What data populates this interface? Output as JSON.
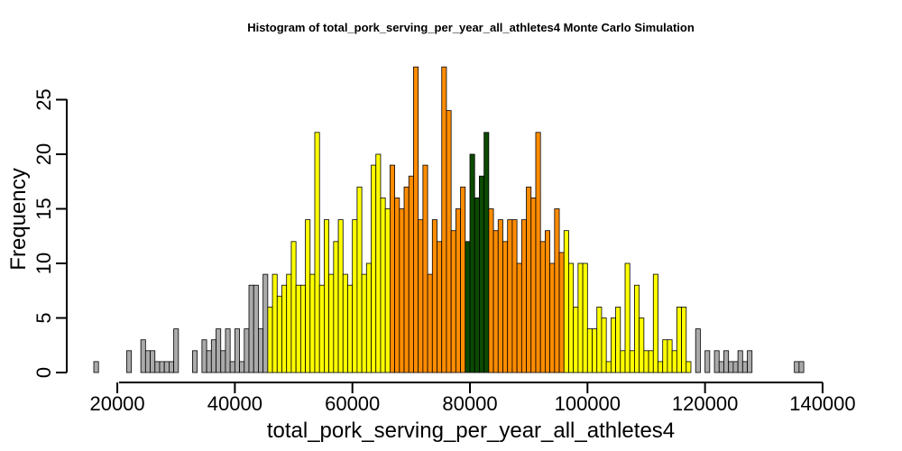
{
  "chart_data": {
    "type": "bar",
    "title": "Histogram of  total_pork_serving_per_year_all_athletes4  Monte Carlo Simulation",
    "xlabel": "total_pork_serving_per_year_all_athletes4",
    "ylabel": "Frequency",
    "xlim": [
      16000,
      144000
    ],
    "ylim": [
      0,
      28
    ],
    "x_ticks": [
      "20000",
      "40000",
      "60000",
      "80000",
      "100000",
      "120000",
      "140000"
    ],
    "y_ticks": [
      "0",
      "5",
      "10",
      "15",
      "20",
      "25"
    ],
    "bin_start": 16000,
    "bin_width": 800,
    "values": [
      1,
      0,
      0,
      0,
      0,
      0,
      0,
      2,
      0,
      0,
      3,
      2,
      2,
      1,
      1,
      1,
      1,
      4,
      0,
      0,
      0,
      2,
      0,
      3,
      2,
      3,
      4,
      2,
      4,
      1,
      4,
      1,
      4,
      8,
      8,
      4,
      9,
      6,
      9,
      7,
      8,
      9,
      12,
      8,
      8,
      14,
      9,
      22,
      8,
      14,
      9,
      12,
      14,
      9,
      8,
      14,
      17,
      9,
      10,
      19,
      20,
      16,
      15,
      19,
      16,
      15,
      17,
      18,
      28,
      14,
      19,
      9,
      14,
      12,
      28,
      24,
      13,
      15,
      17,
      12,
      20,
      16,
      18,
      22,
      15,
      13,
      14,
      12,
      14,
      14,
      10,
      14,
      17,
      16,
      22,
      12,
      13,
      10,
      15,
      11,
      13,
      10,
      6,
      10,
      10,
      4,
      4,
      6,
      5,
      1,
      5,
      6,
      2,
      10,
      2,
      8,
      5,
      2,
      2,
      9,
      1,
      3,
      3,
      2,
      6,
      6,
      1,
      0,
      4,
      0,
      2,
      0,
      2,
      1,
      2,
      1,
      1,
      2,
      1,
      2,
      0,
      0,
      0,
      0,
      0,
      0,
      0,
      0,
      0,
      1,
      1
    ],
    "color_bands": [
      {
        "from": 16000,
        "to": 45600,
        "color": "#aaaaaa"
      },
      {
        "from": 45600,
        "to": 66400,
        "color": "#ffff00"
      },
      {
        "from": 66400,
        "to": 79200,
        "color": "#ff8c00"
      },
      {
        "from": 79200,
        "to": 83200,
        "color": "#0b4a00"
      },
      {
        "from": 83200,
        "to": 96000,
        "color": "#ff8c00"
      },
      {
        "from": 96000,
        "to": 117600,
        "color": "#ffff00"
      },
      {
        "from": 117600,
        "to": 144000,
        "color": "#aaaaaa"
      }
    ],
    "grid": false,
    "legend": "none"
  }
}
